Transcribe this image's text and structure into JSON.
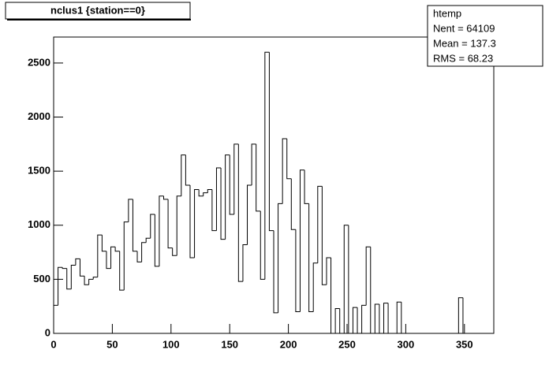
{
  "chart_data": {
    "type": "histogram",
    "title": "nclus1 {station==0}",
    "stats": {
      "name": "htemp",
      "entries": "Nent = 64109",
      "mean": "Mean  =  137.3",
      "rms": "RMS   =  68.23"
    },
    "bins": [
      0,
      3.75,
      7.5,
      11.25,
      15,
      18.75,
      22.5,
      26.25,
      30,
      33.75,
      37.5,
      41.25,
      45,
      48.75,
      52.5,
      56.25,
      60,
      63.75,
      67.5,
      71.25,
      75,
      78.75,
      82.5,
      86.25,
      90,
      93.75,
      97.5,
      101.25,
      105,
      108.75,
      112.5,
      116.25,
      120,
      123.75,
      127.5,
      131.25,
      135,
      138.75,
      142.5,
      146.25,
      150,
      153.75,
      157.5,
      161.25,
      165,
      168.75,
      172.5,
      176.25,
      180,
      183.75,
      187.5,
      191.25,
      195,
      198.75,
      202.5,
      206.25,
      210,
      213.75,
      217.5,
      221.25,
      225,
      228.75,
      232.5,
      236.25,
      240,
      243.75,
      247.5,
      251.25,
      255,
      258.75,
      262.5,
      266.25,
      270,
      273.75,
      277.5,
      281.25,
      285,
      288.75,
      292.5,
      296.25,
      300,
      303.75,
      307.5,
      311.25,
      315,
      318.75,
      322.5,
      326.25,
      330,
      333.75,
      337.5,
      341.25,
      345,
      348.75,
      352.5,
      356.25,
      360,
      363.75,
      367.5,
      371.25,
      375
    ],
    "values": [
      260,
      610,
      600,
      410,
      630,
      690,
      530,
      450,
      500,
      520,
      910,
      760,
      600,
      800,
      760,
      400,
      1030,
      1240,
      760,
      660,
      840,
      880,
      1100,
      620,
      1270,
      1240,
      790,
      720,
      1270,
      1650,
      1370,
      700,
      1330,
      1270,
      1300,
      1330,
      950,
      1530,
      870,
      1650,
      1100,
      1750,
      480,
      820,
      1370,
      1750,
      1130,
      500,
      2600,
      950,
      190,
      1200,
      1800,
      1430,
      960,
      200,
      1510,
      1200,
      200,
      650,
      1360,
      450,
      700,
      0,
      230,
      0,
      1000,
      0,
      240,
      0,
      260,
      800,
      0,
      270,
      0,
      280,
      0,
      0,
      290,
      0,
      0,
      0,
      0,
      0,
      0,
      0,
      0,
      0,
      0,
      0,
      0,
      0,
      330,
      0,
      0,
      0,
      0,
      0,
      0,
      0
    ],
    "color": "#000000",
    "xlim": [
      0,
      375
    ],
    "ylim": [
      0,
      2740
    ],
    "xticks": [
      0,
      50,
      100,
      150,
      200,
      250,
      300,
      350
    ],
    "yticks": [
      0,
      500,
      1000,
      1500,
      2000,
      2500
    ]
  }
}
